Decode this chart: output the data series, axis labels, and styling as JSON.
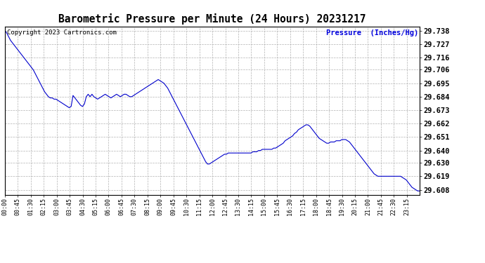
{
  "title": "Barometric Pressure per Minute (24 Hours) 20231217",
  "copyright_text": "Copyright 2023 Cartronics.com",
  "ylabel": "Pressure  (Inches/Hg)",
  "ylabel_color": "#0000dd",
  "copyright_color": "#000000",
  "title_color": "#000000",
  "line_color": "#0000cc",
  "background_color": "#ffffff",
  "grid_color": "#aaaaaa",
  "ylim_min": 29.604,
  "ylim_max": 29.7415,
  "yticks": [
    29.608,
    29.619,
    29.63,
    29.64,
    29.651,
    29.662,
    29.673,
    29.684,
    29.695,
    29.706,
    29.716,
    29.727,
    29.738
  ],
  "xtick_labels": [
    "00:00",
    "00:45",
    "01:30",
    "02:15",
    "03:00",
    "03:45",
    "04:30",
    "05:15",
    "06:00",
    "06:45",
    "07:30",
    "08:15",
    "09:00",
    "09:45",
    "10:30",
    "11:15",
    "12:00",
    "12:45",
    "13:30",
    "14:15",
    "15:00",
    "15:45",
    "16:30",
    "17:15",
    "18:00",
    "18:45",
    "19:30",
    "20:15",
    "21:00",
    "21:45",
    "22:30",
    "23:15"
  ],
  "x_values": [
    0,
    45,
    90,
    135,
    180,
    225,
    270,
    315,
    360,
    405,
    450,
    495,
    540,
    585,
    630,
    675,
    720,
    765,
    810,
    855,
    900,
    945,
    990,
    1035,
    1080,
    1125,
    1170,
    1215,
    1260,
    1305,
    1350,
    1395
  ],
  "pressure_data": [
    29.738,
    29.736,
    29.733,
    29.73,
    29.728,
    29.726,
    29.724,
    29.722,
    29.72,
    29.718,
    29.716,
    29.714,
    29.712,
    29.71,
    29.708,
    29.706,
    29.703,
    29.7,
    29.697,
    29.694,
    29.691,
    29.688,
    29.686,
    29.684,
    29.683,
    29.683,
    29.682,
    29.682,
    29.681,
    29.68,
    29.679,
    29.678,
    29.677,
    29.676,
    29.675,
    29.676,
    29.685,
    29.683,
    29.681,
    29.679,
    29.677,
    29.676,
    29.678,
    29.684,
    29.686,
    29.684,
    29.686,
    29.684,
    29.683,
    29.682,
    29.683,
    29.684,
    29.685,
    29.686,
    29.685,
    29.684,
    29.683,
    29.684,
    29.685,
    29.686,
    29.685,
    29.684,
    29.685,
    29.686,
    29.686,
    29.685,
    29.684,
    29.684,
    29.685,
    29.686,
    29.687,
    29.688,
    29.689,
    29.69,
    29.691,
    29.692,
    29.693,
    29.694,
    29.695,
    29.696,
    29.697,
    29.698,
    29.697,
    29.696,
    29.695,
    29.693,
    29.691,
    29.688,
    29.685,
    29.682,
    29.679,
    29.676,
    29.673,
    29.67,
    29.667,
    29.664,
    29.661,
    29.658,
    29.655,
    29.652,
    29.649,
    29.646,
    29.643,
    29.64,
    29.637,
    29.634,
    29.631,
    29.629,
    29.629,
    29.63,
    29.631,
    29.632,
    29.633,
    29.634,
    29.635,
    29.636,
    29.637,
    29.637,
    29.638,
    29.638,
    29.638,
    29.638,
    29.638,
    29.638,
    29.638,
    29.638,
    29.638,
    29.638,
    29.638,
    29.638,
    29.638,
    29.639,
    29.639,
    29.639,
    29.64,
    29.64,
    29.641,
    29.641,
    29.641,
    29.641,
    29.641,
    29.641,
    29.642,
    29.642,
    29.643,
    29.644,
    29.645,
    29.646,
    29.648,
    29.649,
    29.65,
    29.651,
    29.652,
    29.654,
    29.655,
    29.657,
    29.658,
    29.659,
    29.66,
    29.661,
    29.661,
    29.66,
    29.658,
    29.656,
    29.654,
    29.652,
    29.65,
    29.649,
    29.648,
    29.647,
    29.646,
    29.646,
    29.647,
    29.647,
    29.647,
    29.648,
    29.648,
    29.648,
    29.649,
    29.649,
    29.649,
    29.648,
    29.647,
    29.645,
    29.643,
    29.641,
    29.639,
    29.637,
    29.635,
    29.633,
    29.631,
    29.629,
    29.627,
    29.625,
    29.623,
    29.621,
    29.62,
    29.619,
    29.619,
    29.619,
    29.619,
    29.619,
    29.619,
    29.619,
    29.619,
    29.619,
    29.619,
    29.619,
    29.619,
    29.619,
    29.618,
    29.617,
    29.616,
    29.614,
    29.612,
    29.61,
    29.609,
    29.608,
    29.607,
    29.607
  ]
}
